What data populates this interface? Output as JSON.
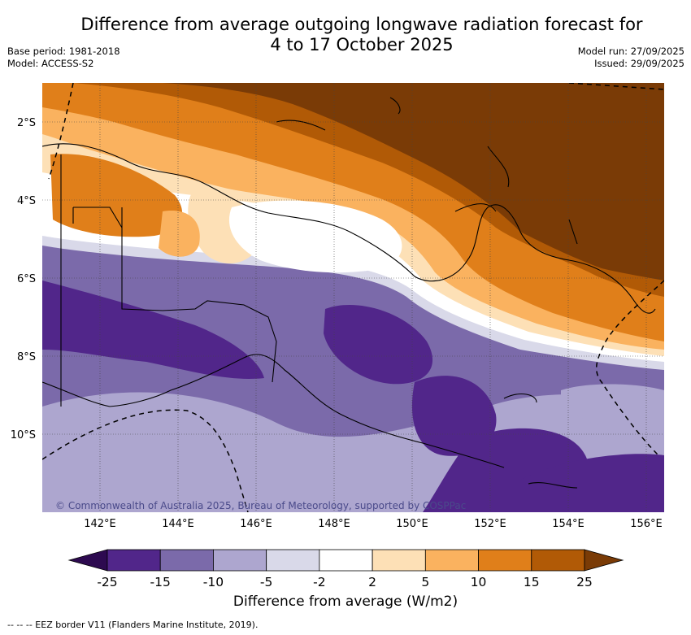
{
  "title_line1": "Difference from average outgoing longwave radiation forecast for",
  "title_line2": "4 to 17 October 2025",
  "base_period": "Base period: 1981-2018",
  "model": "Model: ACCESS-S2",
  "model_run": "Model run: 27/09/2025",
  "issued": "Issued: 29/09/2025",
  "copyright": "© Commonwealth of Australia 2025, Bureau of Meteorology, supported by COSPPac",
  "colorbar_label": "Difference from average (W/m2)",
  "footnote": "-- -- -- EEZ border V11 (Flanders Marine Institute, 2019).",
  "axes": {
    "lon_labels": [
      "142°E",
      "144°E",
      "146°E",
      "148°E",
      "150°E",
      "152°E",
      "154°E",
      "156°E"
    ],
    "lat_labels": [
      "2°S",
      "4°S",
      "6°S",
      "8°S",
      "10°S"
    ]
  },
  "colorbar": {
    "ticks": [
      "-25",
      "-15",
      "-10",
      "-5",
      "-2",
      "2",
      "5",
      "10",
      "15",
      "25"
    ],
    "colors": [
      "#51268a",
      "#7b6aaa",
      "#ada6cf",
      "#d9d9e9",
      "#ffffff",
      "#fde0b6",
      "#fab25f",
      "#e07f1a",
      "#b15a06"
    ],
    "under_color": "#2d0a50",
    "over_color": "#7a3b06"
  },
  "palette": {
    "deep_brown": "#7a3b06",
    "brown": "#b15a06",
    "orange": "#e07f1a",
    "light_orange": "#fab25f",
    "peach": "#fde0b6",
    "white": "#ffffff",
    "lavender": "#d9d9e9",
    "light_purple": "#ada6cf",
    "purple": "#7b6aaa",
    "dark_purple": "#51268a"
  }
}
